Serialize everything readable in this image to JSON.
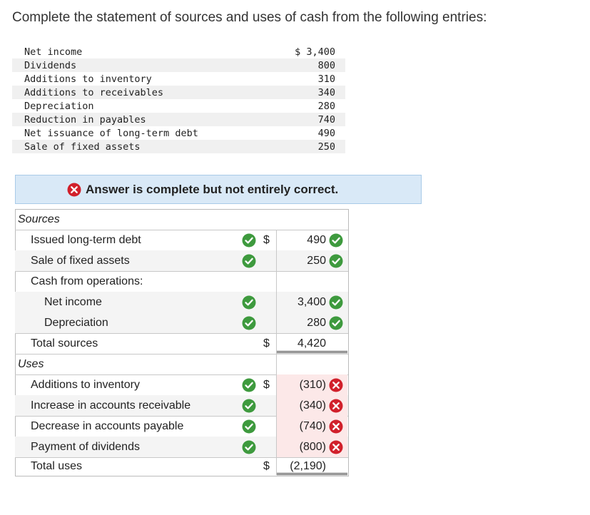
{
  "question": "Complete the statement of sources and uses of cash from the following entries:",
  "given": [
    {
      "label": "Net income",
      "value": "$ 3,400"
    },
    {
      "label": "Dividends",
      "value": "800"
    },
    {
      "label": "Additions to inventory",
      "value": "310"
    },
    {
      "label": "Additions to receivables",
      "value": "340"
    },
    {
      "label": "Depreciation",
      "value": "280"
    },
    {
      "label": "Reduction in payables",
      "value": "740"
    },
    {
      "label": "Net issuance of long-term debt",
      "value": "490"
    },
    {
      "label": "Sale of fixed assets",
      "value": "250"
    }
  ],
  "banner": "Answer is complete but not entirely correct.",
  "colors": {
    "correct": "#3e9a3e",
    "incorrect": "#d1202b",
    "banner_bg": "#d9e9f7"
  },
  "answer": {
    "sources_heading": "Sources",
    "issued_debt": {
      "label": "Issued long-term debt",
      "currency": "$",
      "value": "490"
    },
    "sale_fixed": {
      "label": "Sale of fixed assets",
      "value": "250"
    },
    "cash_ops": {
      "label": "Cash from operations:"
    },
    "net_income": {
      "label": "Net income",
      "value": "3,400"
    },
    "depreciation": {
      "label": "Depreciation",
      "value": "280"
    },
    "total_sources": {
      "label": "Total sources",
      "currency": "$",
      "value": "4,420"
    },
    "uses_heading": "Uses",
    "inventory": {
      "label": "Additions to inventory",
      "currency": "$",
      "value": "(310)"
    },
    "receivable": {
      "label": "Increase in accounts receivable",
      "value": "(340)"
    },
    "payable": {
      "label": "Decrease in accounts payable",
      "value": "(740)"
    },
    "dividends": {
      "label": "Payment of dividends",
      "value": "(800)"
    },
    "total_uses": {
      "label": "Total uses",
      "currency": "$",
      "value": "(2,190)"
    }
  }
}
